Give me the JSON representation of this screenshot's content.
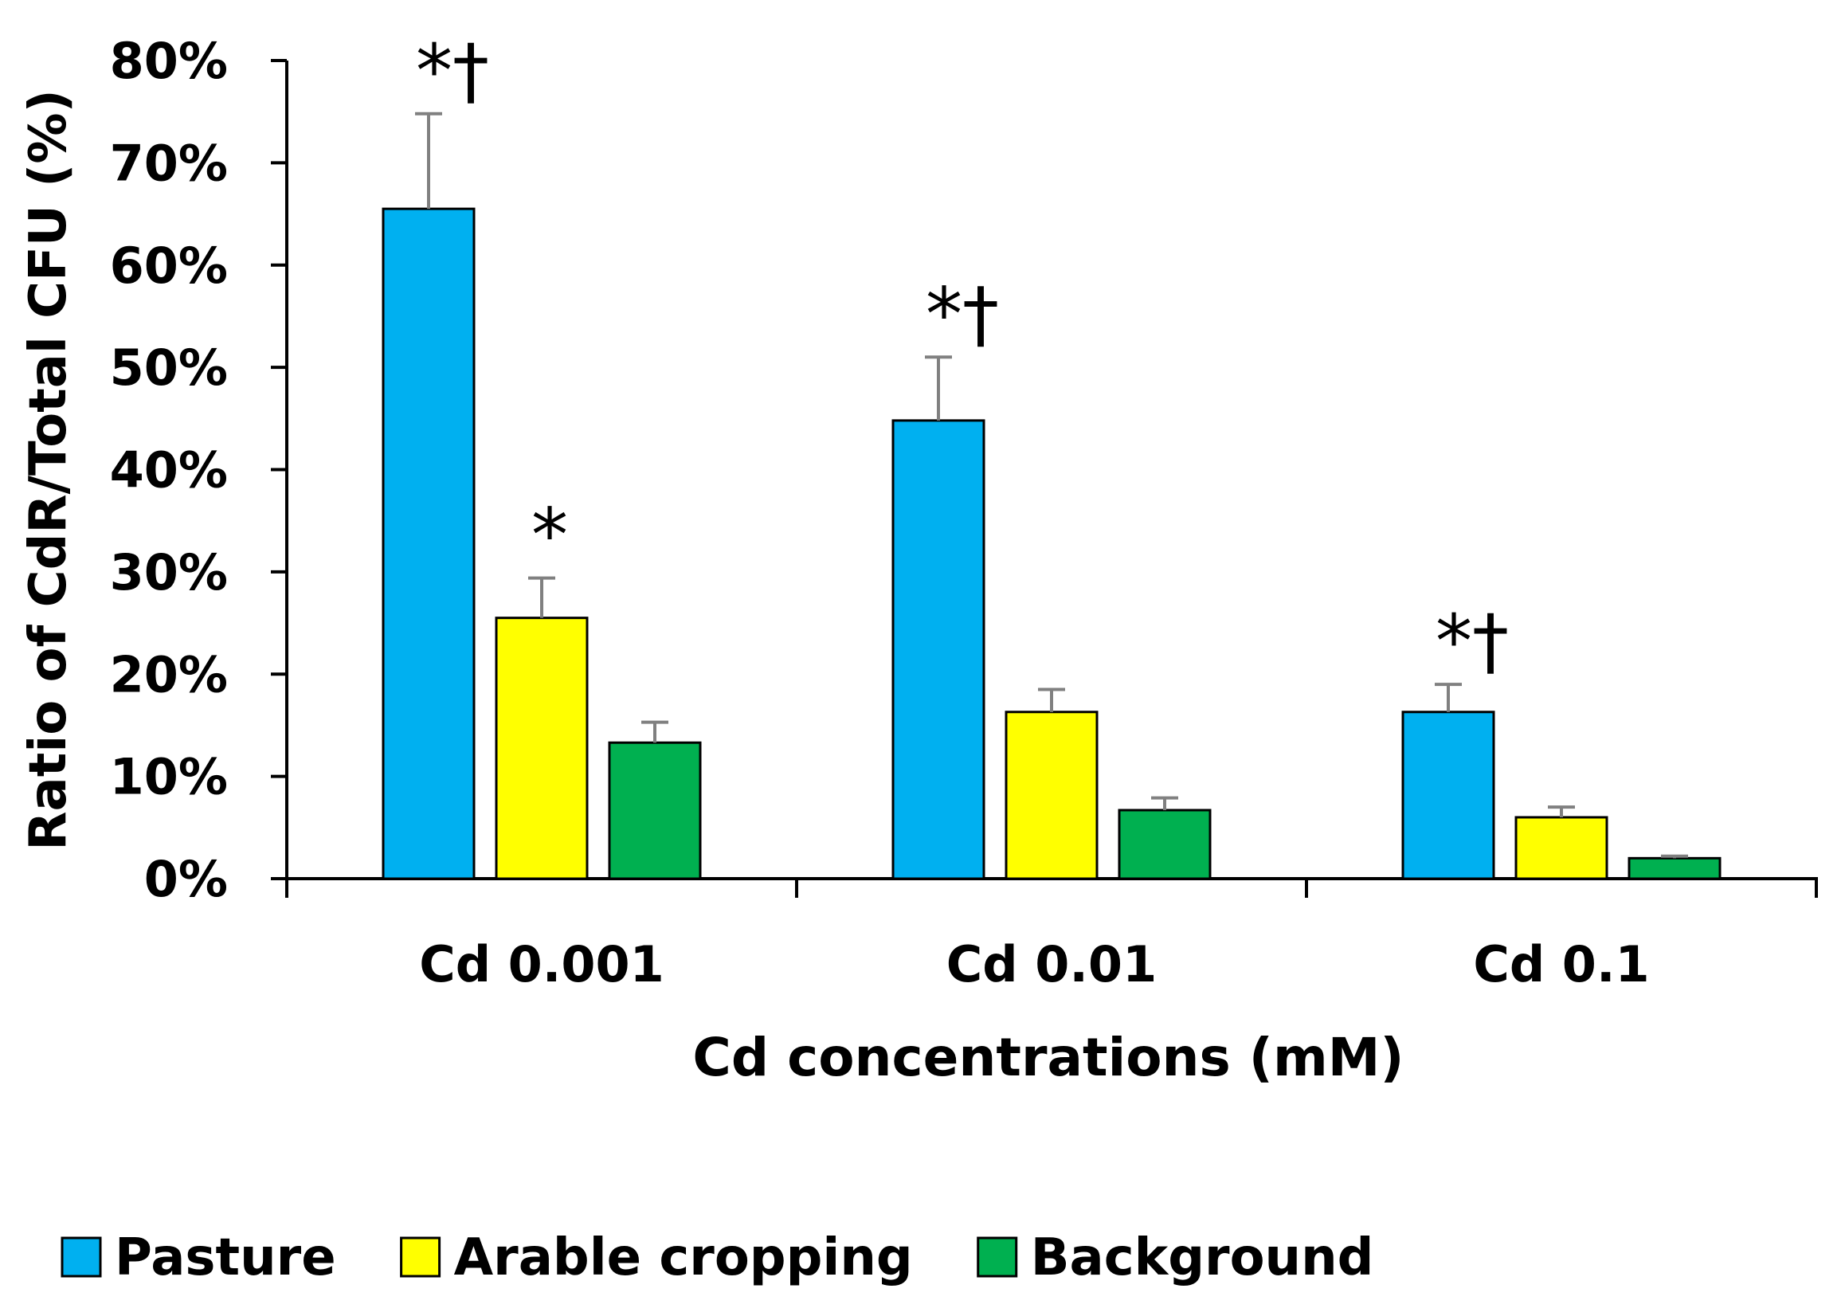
{
  "chart_data": {
    "type": "bar",
    "title": "",
    "xlabel": "Cd concentrations (mM)",
    "ylabel": "Ratio of CdR/Total CFU (%)",
    "ylim": [
      0,
      80
    ],
    "yticks": [
      0,
      10,
      20,
      30,
      40,
      50,
      60,
      70,
      80
    ],
    "ytick_labels": [
      "0%",
      "10%",
      "20%",
      "30%",
      "40%",
      "50%",
      "60%",
      "70%",
      "80%"
    ],
    "categories": [
      "Cd 0.001",
      "Cd 0.01",
      "Cd 0.1"
    ],
    "series": [
      {
        "name": "Pasture",
        "color": "#00b0f0",
        "values": [
          65.5,
          44.8,
          16.3
        ],
        "errors": [
          9.3,
          6.2,
          2.7
        ],
        "annotations": [
          "*†",
          "*†",
          "*†"
        ]
      },
      {
        "name": "Arable cropping",
        "color": "#ffff00",
        "values": [
          25.5,
          16.3,
          6.0
        ],
        "errors": [
          3.9,
          2.2,
          1.0
        ],
        "annotations": [
          "*",
          "",
          ""
        ]
      },
      {
        "name": "Background",
        "color": "#00b050",
        "values": [
          13.3,
          6.7,
          2.0
        ],
        "errors": [
          2.0,
          1.2,
          0.2
        ],
        "annotations": [
          "",
          "",
          ""
        ]
      }
    ],
    "grid": false,
    "legend_position": "bottom-left"
  }
}
